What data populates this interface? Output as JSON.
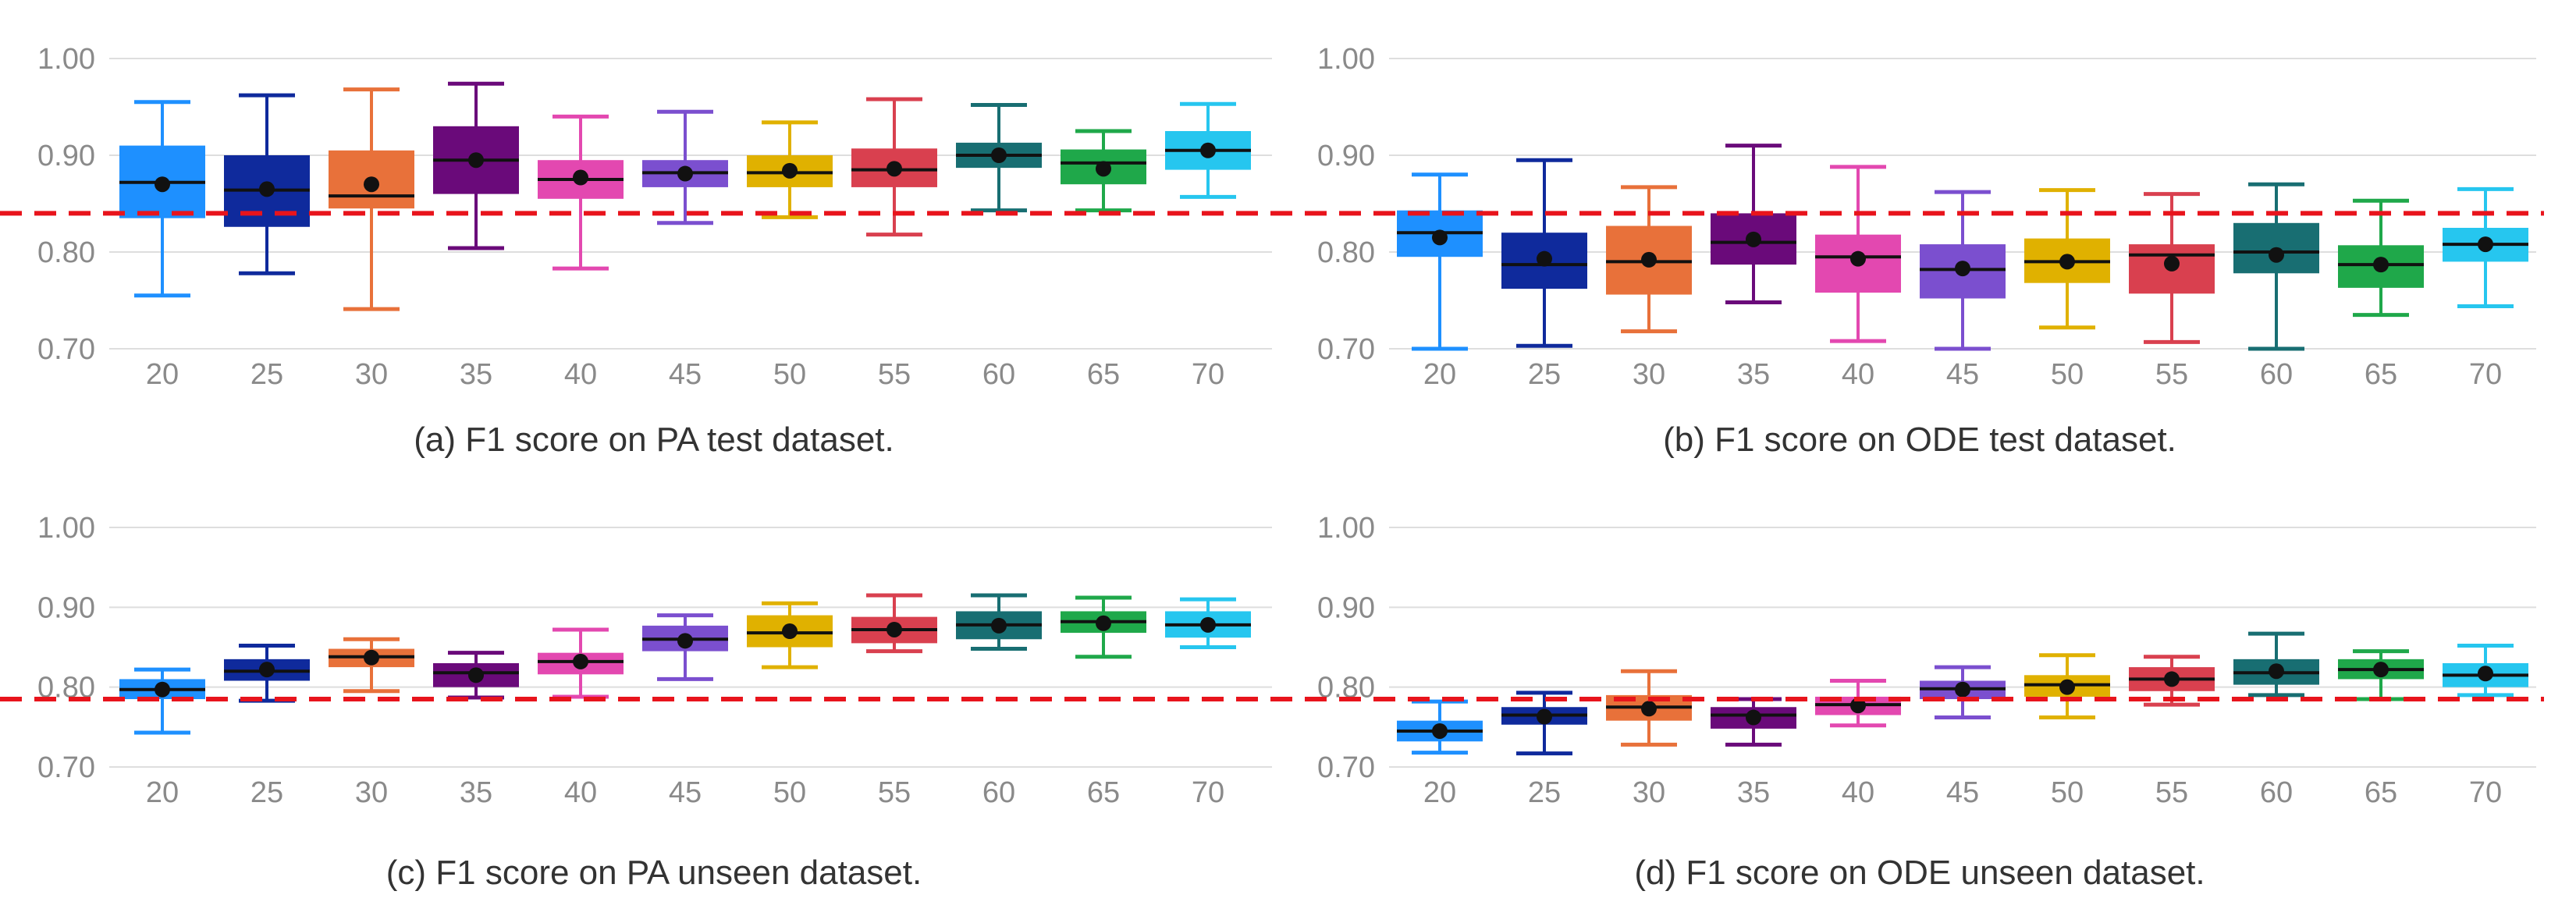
{
  "chart_data": [
    {
      "type": "box",
      "title": "(a) F1 score on PA test dataset.",
      "categories": [
        "20",
        "25",
        "30",
        "35",
        "40",
        "45",
        "50",
        "55",
        "60",
        "65",
        "70"
      ],
      "yticks": [
        "0.70",
        "0.80",
        "0.90",
        "1.00"
      ],
      "ylim": [
        0.7,
        1.0
      ],
      "reference_line": 0.84,
      "colors": [
        "#1e90ff",
        "#0f2a9c",
        "#e8713a",
        "#6a0a7a",
        "#e348b0",
        "#7b4fcf",
        "#e0b100",
        "#d9404f",
        "#186e72",
        "#1fa84a",
        "#26c6ef"
      ],
      "boxes": [
        {
          "whisker_low": 0.755,
          "q1": 0.835,
          "median": 0.872,
          "q3": 0.91,
          "whisker_high": 0.955,
          "mean": 0.87
        },
        {
          "whisker_low": 0.778,
          "q1": 0.826,
          "median": 0.864,
          "q3": 0.9,
          "whisker_high": 0.962,
          "mean": 0.865
        },
        {
          "whisker_low": 0.741,
          "q1": 0.845,
          "median": 0.858,
          "q3": 0.905,
          "whisker_high": 0.968,
          "mean": 0.87
        },
        {
          "whisker_low": 0.804,
          "q1": 0.86,
          "median": 0.895,
          "q3": 0.93,
          "whisker_high": 0.974,
          "mean": 0.895
        },
        {
          "whisker_low": 0.783,
          "q1": 0.855,
          "median": 0.875,
          "q3": 0.895,
          "whisker_high": 0.94,
          "mean": 0.877
        },
        {
          "whisker_low": 0.83,
          "q1": 0.867,
          "median": 0.882,
          "q3": 0.895,
          "whisker_high": 0.945,
          "mean": 0.881
        },
        {
          "whisker_low": 0.836,
          "q1": 0.867,
          "median": 0.882,
          "q3": 0.9,
          "whisker_high": 0.934,
          "mean": 0.884
        },
        {
          "whisker_low": 0.818,
          "q1": 0.867,
          "median": 0.885,
          "q3": 0.907,
          "whisker_high": 0.958,
          "mean": 0.886
        },
        {
          "whisker_low": 0.843,
          "q1": 0.887,
          "median": 0.9,
          "q3": 0.913,
          "whisker_high": 0.952,
          "mean": 0.9
        },
        {
          "whisker_low": 0.843,
          "q1": 0.87,
          "median": 0.892,
          "q3": 0.906,
          "whisker_high": 0.925,
          "mean": 0.886
        },
        {
          "whisker_low": 0.857,
          "q1": 0.885,
          "median": 0.905,
          "q3": 0.925,
          "whisker_high": 0.953,
          "mean": 0.905
        }
      ]
    },
    {
      "type": "box",
      "title": "(b) F1 score on ODE test dataset.",
      "categories": [
        "20",
        "25",
        "30",
        "35",
        "40",
        "45",
        "50",
        "55",
        "60",
        "65",
        "70"
      ],
      "yticks": [
        "0.70",
        "0.80",
        "0.90",
        "1.00"
      ],
      "ylim": [
        0.7,
        1.0
      ],
      "reference_line": 0.843,
      "colors": [
        "#1e90ff",
        "#0f2a9c",
        "#e8713a",
        "#6a0a7a",
        "#e348b0",
        "#7b4fcf",
        "#e0b100",
        "#d9404f",
        "#186e72",
        "#1fa84a",
        "#26c6ef"
      ],
      "boxes": [
        {
          "whisker_low": 0.7,
          "q1": 0.795,
          "median": 0.82,
          "q3": 0.843,
          "whisker_high": 0.88,
          "mean": 0.815
        },
        {
          "whisker_low": 0.703,
          "q1": 0.762,
          "median": 0.787,
          "q3": 0.82,
          "whisker_high": 0.895,
          "mean": 0.793
        },
        {
          "whisker_low": 0.718,
          "q1": 0.756,
          "median": 0.79,
          "q3": 0.827,
          "whisker_high": 0.867,
          "mean": 0.792
        },
        {
          "whisker_low": 0.748,
          "q1": 0.787,
          "median": 0.81,
          "q3": 0.84,
          "whisker_high": 0.91,
          "mean": 0.813
        },
        {
          "whisker_low": 0.708,
          "q1": 0.758,
          "median": 0.795,
          "q3": 0.818,
          "whisker_high": 0.888,
          "mean": 0.793
        },
        {
          "whisker_low": 0.7,
          "q1": 0.752,
          "median": 0.782,
          "q3": 0.808,
          "whisker_high": 0.862,
          "mean": 0.783
        },
        {
          "whisker_low": 0.722,
          "q1": 0.768,
          "median": 0.79,
          "q3": 0.814,
          "whisker_high": 0.864,
          "mean": 0.79
        },
        {
          "whisker_low": 0.707,
          "q1": 0.757,
          "median": 0.797,
          "q3": 0.808,
          "whisker_high": 0.86,
          "mean": 0.788
        },
        {
          "whisker_low": 0.7,
          "q1": 0.778,
          "median": 0.8,
          "q3": 0.83,
          "whisker_high": 0.87,
          "mean": 0.797
        },
        {
          "whisker_low": 0.735,
          "q1": 0.763,
          "median": 0.787,
          "q3": 0.807,
          "whisker_high": 0.853,
          "mean": 0.787
        },
        {
          "whisker_low": 0.744,
          "q1": 0.79,
          "median": 0.808,
          "q3": 0.825,
          "whisker_high": 0.865,
          "mean": 0.808
        }
      ]
    },
    {
      "type": "box",
      "title": "(c) F1 score on PA unseen dataset.",
      "categories": [
        "20",
        "25",
        "30",
        "35",
        "40",
        "45",
        "50",
        "55",
        "60",
        "65",
        "70"
      ],
      "yticks": [
        "0.70",
        "0.80",
        "0.90",
        "1.00"
      ],
      "ylim": [
        0.7,
        1.0
      ],
      "reference_line": 0.785,
      "colors": [
        "#1e90ff",
        "#0f2a9c",
        "#e8713a",
        "#6a0a7a",
        "#e348b0",
        "#7b4fcf",
        "#e0b100",
        "#d9404f",
        "#186e72",
        "#1fa84a",
        "#26c6ef"
      ],
      "boxes": [
        {
          "whisker_low": 0.743,
          "q1": 0.785,
          "median": 0.797,
          "q3": 0.81,
          "whisker_high": 0.822,
          "mean": 0.797
        },
        {
          "whisker_low": 0.783,
          "q1": 0.808,
          "median": 0.82,
          "q3": 0.835,
          "whisker_high": 0.852,
          "mean": 0.822
        },
        {
          "whisker_low": 0.795,
          "q1": 0.825,
          "median": 0.838,
          "q3": 0.848,
          "whisker_high": 0.86,
          "mean": 0.837
        },
        {
          "whisker_low": 0.787,
          "q1": 0.8,
          "median": 0.818,
          "q3": 0.83,
          "whisker_high": 0.843,
          "mean": 0.815
        },
        {
          "whisker_low": 0.788,
          "q1": 0.816,
          "median": 0.832,
          "q3": 0.843,
          "whisker_high": 0.872,
          "mean": 0.832
        },
        {
          "whisker_low": 0.81,
          "q1": 0.845,
          "median": 0.86,
          "q3": 0.877,
          "whisker_high": 0.89,
          "mean": 0.858
        },
        {
          "whisker_low": 0.825,
          "q1": 0.85,
          "median": 0.868,
          "q3": 0.89,
          "whisker_high": 0.905,
          "mean": 0.87
        },
        {
          "whisker_low": 0.845,
          "q1": 0.855,
          "median": 0.872,
          "q3": 0.888,
          "whisker_high": 0.915,
          "mean": 0.872
        },
        {
          "whisker_low": 0.848,
          "q1": 0.86,
          "median": 0.878,
          "q3": 0.895,
          "whisker_high": 0.915,
          "mean": 0.877
        },
        {
          "whisker_low": 0.838,
          "q1": 0.868,
          "median": 0.882,
          "q3": 0.895,
          "whisker_high": 0.912,
          "mean": 0.88
        },
        {
          "whisker_low": 0.85,
          "q1": 0.862,
          "median": 0.878,
          "q3": 0.895,
          "whisker_high": 0.91,
          "mean": 0.878
        }
      ]
    },
    {
      "type": "box",
      "title": "(d) F1 score on ODE unseen dataset.",
      "categories": [
        "20",
        "25",
        "30",
        "35",
        "40",
        "45",
        "50",
        "55",
        "60",
        "65",
        "70"
      ],
      "yticks": [
        "0.70",
        "0.80",
        "0.90",
        "1.00"
      ],
      "ylim": [
        0.7,
        1.0
      ],
      "reference_line": 0.785,
      "colors": [
        "#1e90ff",
        "#0f2a9c",
        "#e8713a",
        "#6a0a7a",
        "#e348b0",
        "#7b4fcf",
        "#e0b100",
        "#d9404f",
        "#186e72",
        "#1fa84a",
        "#26c6ef"
      ],
      "boxes": [
        {
          "whisker_low": 0.718,
          "q1": 0.732,
          "median": 0.745,
          "q3": 0.758,
          "whisker_high": 0.782,
          "mean": 0.745
        },
        {
          "whisker_low": 0.717,
          "q1": 0.753,
          "median": 0.765,
          "q3": 0.775,
          "whisker_high": 0.793,
          "mean": 0.763
        },
        {
          "whisker_low": 0.728,
          "q1": 0.758,
          "median": 0.775,
          "q3": 0.79,
          "whisker_high": 0.82,
          "mean": 0.773
        },
        {
          "whisker_low": 0.728,
          "q1": 0.748,
          "median": 0.765,
          "q3": 0.775,
          "whisker_high": 0.785,
          "mean": 0.762
        },
        {
          "whisker_low": 0.752,
          "q1": 0.765,
          "median": 0.778,
          "q3": 0.788,
          "whisker_high": 0.808,
          "mean": 0.777
        },
        {
          "whisker_low": 0.762,
          "q1": 0.785,
          "median": 0.798,
          "q3": 0.808,
          "whisker_high": 0.825,
          "mean": 0.797
        },
        {
          "whisker_low": 0.762,
          "q1": 0.788,
          "median": 0.803,
          "q3": 0.815,
          "whisker_high": 0.84,
          "mean": 0.8
        },
        {
          "whisker_low": 0.778,
          "q1": 0.795,
          "median": 0.81,
          "q3": 0.825,
          "whisker_high": 0.838,
          "mean": 0.81
        },
        {
          "whisker_low": 0.79,
          "q1": 0.803,
          "median": 0.818,
          "q3": 0.835,
          "whisker_high": 0.867,
          "mean": 0.82
        },
        {
          "whisker_low": 0.785,
          "q1": 0.81,
          "median": 0.822,
          "q3": 0.835,
          "whisker_high": 0.845,
          "mean": 0.822
        },
        {
          "whisker_low": 0.79,
          "q1": 0.8,
          "median": 0.815,
          "q3": 0.83,
          "whisker_high": 0.852,
          "mean": 0.817
        }
      ]
    }
  ]
}
